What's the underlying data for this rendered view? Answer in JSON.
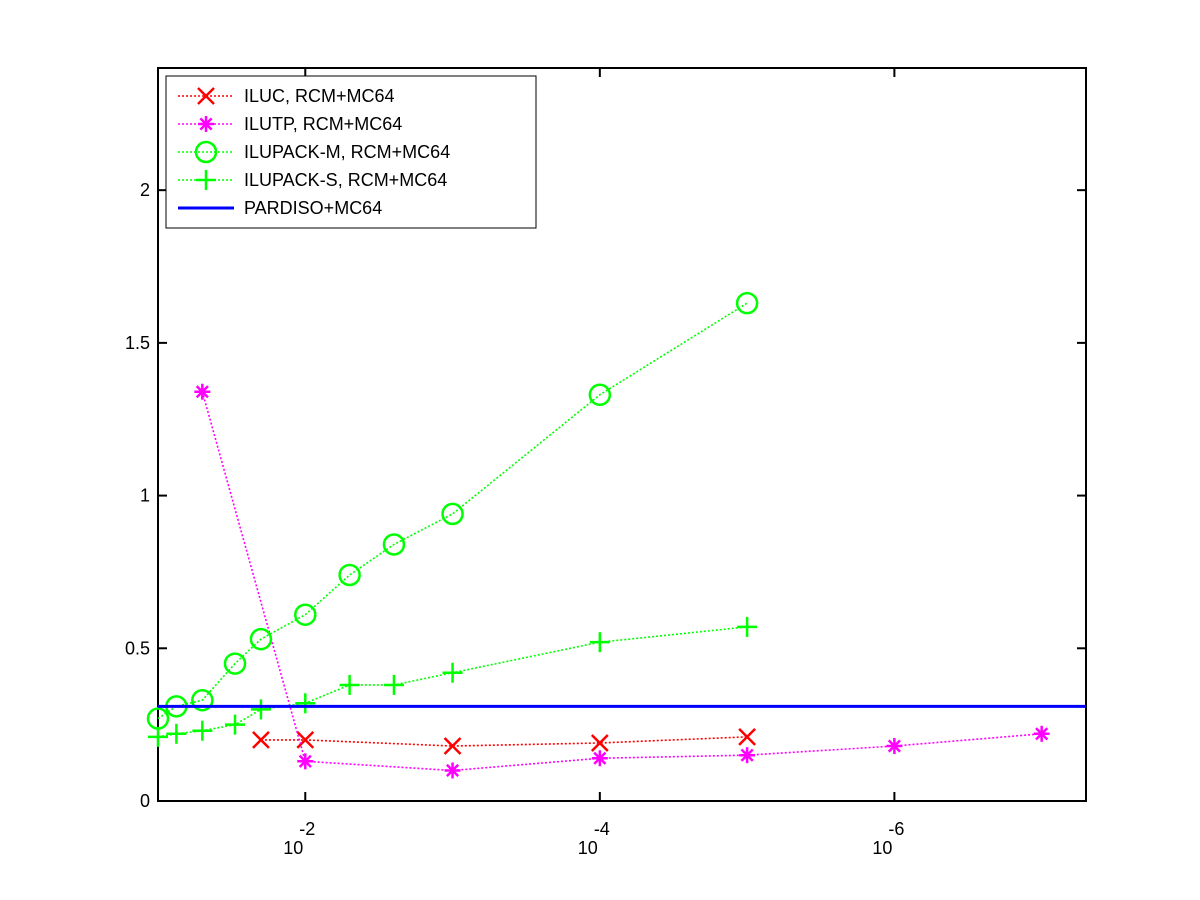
{
  "chart_data": {
    "type": "line",
    "title": "",
    "xlabel": "",
    "ylabel": "",
    "x_scale": "log-reversed",
    "xlim": [
      0.1,
      5e-08
    ],
    "ylim": [
      0,
      2.4
    ],
    "grid": false,
    "legend_position": "top-left",
    "x_ticks": [
      {
        "value": 0.01,
        "base": "10",
        "exp": "-2"
      },
      {
        "value": 0.0001,
        "base": "10",
        "exp": "-4"
      },
      {
        "value": 1e-06,
        "base": "10",
        "exp": "-6"
      }
    ],
    "y_ticks": [
      {
        "value": 0,
        "label": "0"
      },
      {
        "value": 0.5,
        "label": "0.5"
      },
      {
        "value": 1,
        "label": "1"
      },
      {
        "value": 1.5,
        "label": "1.5"
      },
      {
        "value": 2,
        "label": "2"
      }
    ],
    "series": [
      {
        "name": "ILUC, RCM+MC64",
        "color": "#ff0000",
        "marker": "x",
        "line": "dotted",
        "points": [
          {
            "x": 0.02,
            "y": 0.2
          },
          {
            "x": 0.01,
            "y": 0.2
          },
          {
            "x": 0.001,
            "y": 0.18
          },
          {
            "x": 0.0001,
            "y": 0.19
          },
          {
            "x": 1e-05,
            "y": 0.21
          }
        ]
      },
      {
        "name": "ILUTP, RCM+MC64",
        "color": "#ff00ff",
        "marker": "asterisk",
        "line": "dotted",
        "points": [
          {
            "x": 0.05,
            "y": 1.34
          },
          {
            "x": 0.01,
            "y": 0.13
          },
          {
            "x": 0.001,
            "y": 0.1
          },
          {
            "x": 0.0001,
            "y": 0.14
          },
          {
            "x": 1e-05,
            "y": 0.15
          },
          {
            "x": 1e-06,
            "y": 0.18
          },
          {
            "x": 1e-07,
            "y": 0.22
          }
        ]
      },
      {
        "name": "ILUPACK-M, RCM+MC64",
        "color": "#00ff00",
        "marker": "circle",
        "line": "dotted",
        "points": [
          {
            "x": 0.1,
            "y": 0.27
          },
          {
            "x": 0.075,
            "y": 0.31
          },
          {
            "x": 0.05,
            "y": 0.33
          },
          {
            "x": 0.03,
            "y": 0.45
          },
          {
            "x": 0.02,
            "y": 0.53
          },
          {
            "x": 0.01,
            "y": 0.61
          },
          {
            "x": 0.005,
            "y": 0.74
          },
          {
            "x": 0.0025,
            "y": 0.84
          },
          {
            "x": 0.001,
            "y": 0.94
          },
          {
            "x": 0.0001,
            "y": 1.33
          },
          {
            "x": 1e-05,
            "y": 1.63
          }
        ]
      },
      {
        "name": "ILUPACK-S, RCM+MC64",
        "color": "#00ff00",
        "marker": "plus",
        "line": "dotted",
        "points": [
          {
            "x": 0.1,
            "y": 0.21
          },
          {
            "x": 0.075,
            "y": 0.22
          },
          {
            "x": 0.05,
            "y": 0.23
          },
          {
            "x": 0.03,
            "y": 0.25
          },
          {
            "x": 0.02,
            "y": 0.3
          },
          {
            "x": 0.01,
            "y": 0.32
          },
          {
            "x": 0.005,
            "y": 0.38
          },
          {
            "x": 0.0025,
            "y": 0.38
          },
          {
            "x": 0.001,
            "y": 0.42
          },
          {
            "x": 0.0001,
            "y": 0.52
          },
          {
            "x": 1e-05,
            "y": 0.57
          }
        ]
      },
      {
        "name": "PARDISO+MC64",
        "color": "#0000ff",
        "marker": "none",
        "line": "solid",
        "points": [
          {
            "x": 0.1,
            "y": 0.31
          },
          {
            "x": 5e-08,
            "y": 0.31
          }
        ]
      }
    ]
  }
}
